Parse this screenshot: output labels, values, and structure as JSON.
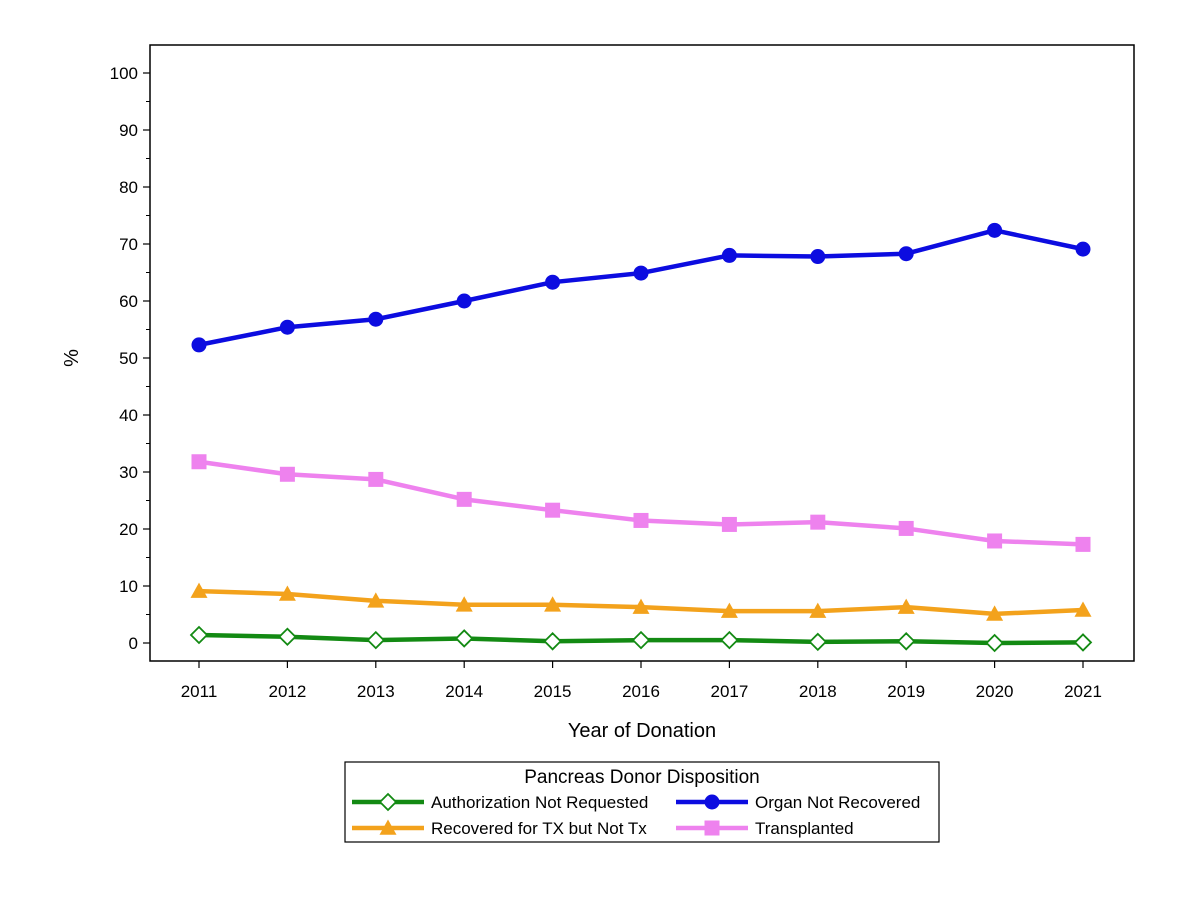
{
  "chart_data": {
    "type": "line",
    "xlabel": "Year of Donation",
    "ylabel": "%",
    "x": [
      2011,
      2012,
      2013,
      2014,
      2015,
      2016,
      2017,
      2018,
      2019,
      2020,
      2021
    ],
    "x_ticks": [
      "2011",
      "2012",
      "2013",
      "2014",
      "2015",
      "2016",
      "2017",
      "2018",
      "2019",
      "2020",
      "2021"
    ],
    "ylim": [
      0,
      100
    ],
    "y_ticks": [
      "0",
      "10",
      "20",
      "30",
      "40",
      "50",
      "60",
      "70",
      "80",
      "90",
      "100"
    ],
    "grid": false,
    "legend": {
      "title": "Pancreas Donor Disposition",
      "placement": "bottom-center"
    },
    "series": [
      {
        "name": "Authorization Not Requested",
        "color": "#138a13",
        "marker": "diamond-open",
        "values": [
          1.4,
          1.1,
          0.5,
          0.8,
          0.3,
          0.5,
          0.5,
          0.2,
          0.3,
          0.0,
          0.1
        ]
      },
      {
        "name": "Organ Not Recovered",
        "color": "#0c0ce0",
        "marker": "circle",
        "values": [
          52.3,
          55.4,
          56.8,
          60.0,
          63.3,
          64.9,
          68.0,
          67.8,
          68.3,
          72.4,
          69.1
        ]
      },
      {
        "name": "Recovered for TX but Not Tx",
        "color": "#f3a21c",
        "marker": "triangle",
        "values": [
          9.1,
          8.6,
          7.4,
          6.7,
          6.7,
          6.3,
          5.6,
          5.6,
          6.3,
          5.1,
          5.8
        ]
      },
      {
        "name": "Transplanted",
        "color": "#ee82ee",
        "marker": "square",
        "values": [
          31.8,
          29.6,
          28.7,
          25.2,
          23.3,
          21.5,
          20.8,
          21.2,
          20.1,
          17.9,
          17.3
        ]
      }
    ]
  }
}
